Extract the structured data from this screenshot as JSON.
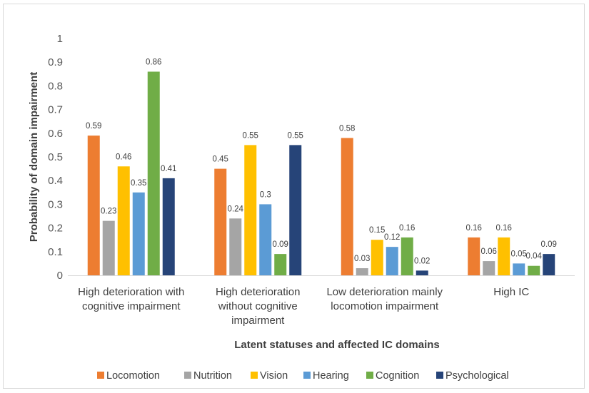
{
  "chart_data": {
    "type": "bar",
    "title": "",
    "xlabel": "Latent statuses and affected IC domains",
    "ylabel": "Probability of domain impairment",
    "ylim": [
      0,
      1
    ],
    "yticks": [
      "0",
      "0.1",
      "0.2",
      "0.3",
      "0.4",
      "0.5",
      "0.6",
      "0.7",
      "0.8",
      "0.9",
      "1"
    ],
    "categories": [
      [
        "High deterioration with",
        "cognitive impairment"
      ],
      [
        "High deterioration",
        "without cognitive",
        "impairment"
      ],
      [
        "Low deterioration mainly",
        "locomotion impairment"
      ],
      [
        "High IC"
      ]
    ],
    "series": [
      {
        "name": "Locomotion",
        "color": "#ed7d31",
        "values": [
          0.59,
          0.45,
          0.58,
          0.16
        ],
        "labels": [
          "0.59",
          "0.45",
          "0.58",
          "0.16"
        ]
      },
      {
        "name": "Nutrition",
        "color": "#a5a5a5",
        "values": [
          0.23,
          0.24,
          0.03,
          0.06
        ],
        "labels": [
          "0.23",
          "0.24",
          "0.03",
          "0.06"
        ]
      },
      {
        "name": "Vision",
        "color": "#ffc000",
        "values": [
          0.46,
          0.55,
          0.15,
          0.16
        ],
        "labels": [
          "0.46",
          "0.55",
          "0.15",
          "0.16"
        ]
      },
      {
        "name": "Hearing",
        "color": "#5b9bd5",
        "values": [
          0.35,
          0.3,
          0.12,
          0.05
        ],
        "labels": [
          "0.35",
          "0.3",
          "0.12",
          "0.05"
        ]
      },
      {
        "name": "Cognition",
        "color": "#70ad47",
        "values": [
          0.86,
          0.09,
          0.16,
          0.04
        ],
        "labels": [
          "0.86",
          "0.09",
          "0.16",
          "0.04"
        ]
      },
      {
        "name": "Psychological",
        "color": "#264478",
        "values": [
          0.41,
          0.55,
          0.02,
          0.09
        ],
        "labels": [
          "0.41",
          "0.55",
          "0.02",
          "0.09"
        ]
      }
    ],
    "grid": false,
    "legend": "bottom"
  }
}
